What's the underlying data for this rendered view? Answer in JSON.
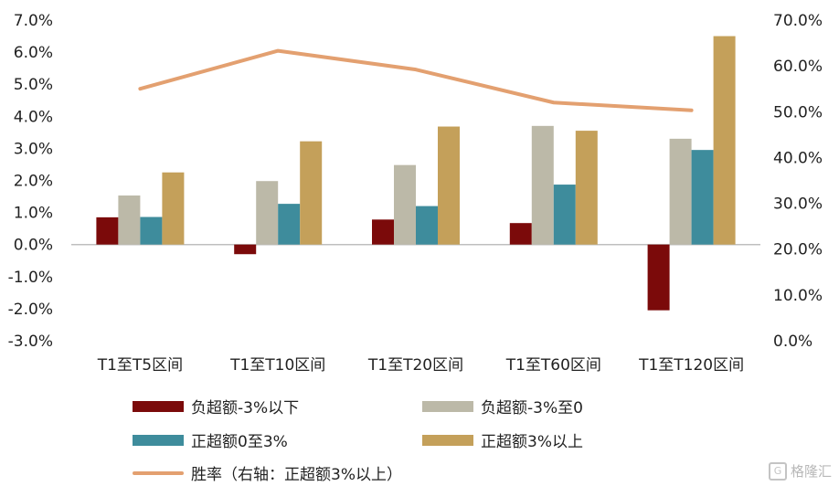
{
  "chart_data": {
    "type": "bar",
    "categories": [
      "T1至T5区间",
      "T1至T10区间",
      "T1至T20区间",
      "T1至T60区间",
      "T1至T120区间"
    ],
    "series": [
      {
        "name": "负超额-3%以下",
        "color": "#7B0A0A",
        "axis": "left",
        "values": [
          0.85,
          -0.3,
          0.78,
          0.67,
          -2.05
        ]
      },
      {
        "name": "负超额-3%至0",
        "color": "#BCB9A8",
        "axis": "left",
        "values": [
          1.53,
          1.98,
          2.48,
          3.7,
          3.3
        ]
      },
      {
        "name": "正超额0至3%",
        "color": "#3E8C9C",
        "axis": "left",
        "values": [
          0.86,
          1.27,
          1.2,
          1.87,
          2.95
        ]
      },
      {
        "name": "正超额3%以上",
        "color": "#C4A05A",
        "axis": "left",
        "values": [
          2.25,
          3.22,
          3.68,
          3.55,
          6.5
        ]
      }
    ],
    "line_series": {
      "name": "胜率（右轴：正超额3%以上）",
      "color": "#E3A070",
      "axis": "right",
      "values": [
        55.0,
        63.3,
        59.2,
        52.0,
        50.3
      ]
    },
    "y_left": {
      "min": -3.0,
      "max": 7.0,
      "step": 1.0,
      "ticks": [
        "-3.0%",
        "-2.0%",
        "-1.0%",
        "0.0%",
        "1.0%",
        "2.0%",
        "3.0%",
        "4.0%",
        "5.0%",
        "6.0%",
        "7.0%"
      ]
    },
    "y_right": {
      "min": 0,
      "max": 70,
      "step": 10,
      "ticks": [
        "0.0%",
        "10.0%",
        "20.0%",
        "30.0%",
        "40.0%",
        "50.0%",
        "60.0%",
        "70.0%"
      ]
    },
    "legend_placement": "bottom",
    "grid": false
  },
  "watermark": {
    "icon": "gelonghui-logo-icon",
    "text": "格隆汇"
  }
}
